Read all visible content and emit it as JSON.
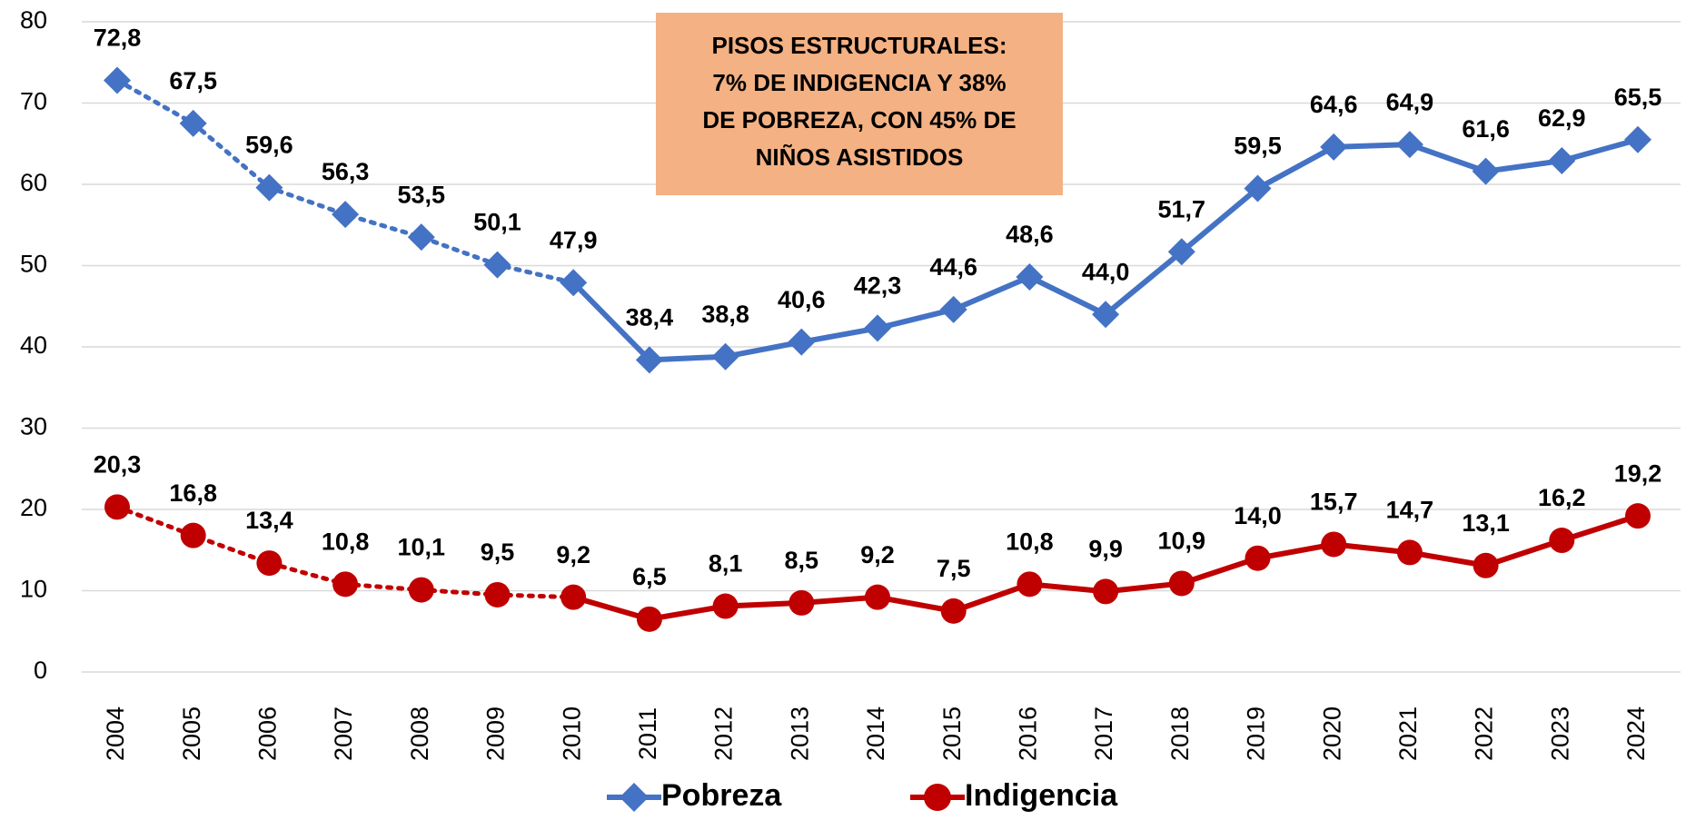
{
  "chart_data": {
    "type": "line",
    "categories": [
      "2004",
      "2005",
      "2006",
      "2007",
      "2008",
      "2009",
      "2010",
      "2011",
      "2012",
      "2013",
      "2014",
      "2015",
      "2016",
      "2017",
      "2018",
      "2019",
      "2020",
      "2021",
      "2022",
      "2023",
      "2024"
    ],
    "series": [
      {
        "name": "Pobreza",
        "color": "#4472c4",
        "marker": "diamond",
        "values": [
          72.8,
          67.5,
          59.6,
          56.3,
          53.5,
          50.1,
          47.9,
          38.4,
          38.8,
          40.6,
          42.3,
          44.6,
          48.6,
          44.0,
          51.7,
          59.5,
          64.6,
          64.9,
          61.6,
          62.9,
          65.5
        ],
        "value_labels": [
          "72,8",
          "67,5",
          "59,6",
          "56,3",
          "53,5",
          "50,1",
          "47,9",
          "38,4",
          "38,8",
          "40,6",
          "42,3",
          "44,6",
          "48,6",
          "44,0",
          "51,7",
          "59,5",
          "64,6",
          "64,9",
          "61,6",
          "62,9",
          "65,5"
        ]
      },
      {
        "name": "Indigencia",
        "color": "#c00000",
        "marker": "circle",
        "values": [
          20.3,
          16.8,
          13.4,
          10.8,
          10.1,
          9.5,
          9.2,
          6.5,
          8.1,
          8.5,
          9.2,
          7.5,
          10.8,
          9.9,
          10.9,
          14.0,
          15.7,
          14.7,
          13.1,
          16.2,
          19.2
        ],
        "value_labels": [
          "20,3",
          "16,8",
          "13,4",
          "10,8",
          "10,1",
          "9,5",
          "9,2",
          "6,5",
          "8,1",
          "8,5",
          "9,2",
          "7,5",
          "10,8",
          "9,9",
          "10,9",
          "14,0",
          "15,7",
          "14,7",
          "13,1",
          "16,2",
          "19,2"
        ]
      }
    ],
    "dotted_through": "2010",
    "ylim": [
      0,
      80
    ],
    "yticks": [
      0,
      10,
      20,
      30,
      40,
      50,
      60,
      70,
      80
    ],
    "grid": true,
    "legend": "bottom",
    "annotation": {
      "lines": [
        "PISOS ESTRUCTURALES:",
        "7% DE INDIGENCIA Y 38%",
        "DE POBREZA, CON 45% DE",
        "NIÑOS  ASISTIDOS"
      ],
      "color": "#f4b183"
    }
  }
}
